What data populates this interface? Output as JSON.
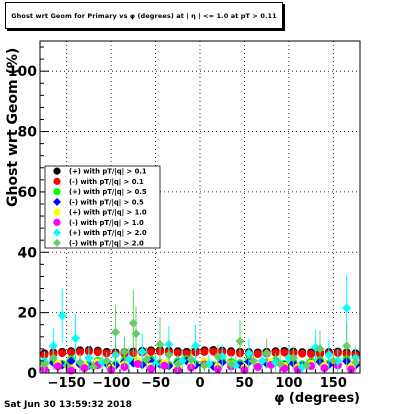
{
  "title": "Ghost wrt Geom for Primary vs φ (degrees) at | η | <= 1.0 at pT > 0.11",
  "timestamp": "Sat Jun 30 13:59:32 2018",
  "chart_data": {
    "type": "scatter",
    "title": "Ghost wrt Geom for Primary vs φ (degrees) at | η | <= 1.0 at pT > 0.11",
    "xlabel": "φ (degrees)",
    "ylabel": "Ghost wrt Geom (%)",
    "xlim": [
      -180,
      180
    ],
    "ylim": [
      0,
      110
    ],
    "xticks": [
      -150,
      -100,
      -50,
      0,
      50,
      100,
      150
    ],
    "yticks": [
      0,
      20,
      40,
      60,
      80,
      100
    ],
    "grid": true,
    "legend_position": "left",
    "series": [
      {
        "name": "(+) with pT/|q| > 0.1",
        "color": "#000000",
        "marker": "circle",
        "x": [
          -175,
          -165,
          -155,
          -145,
          -135,
          -125,
          -115,
          -105,
          -95,
          -85,
          -75,
          -65,
          -55,
          -45,
          -35,
          -25,
          -15,
          -5,
          5,
          15,
          25,
          35,
          45,
          55,
          65,
          75,
          85,
          95,
          105,
          115,
          125,
          135,
          145,
          155,
          165,
          175
        ],
        "y": [
          6.5,
          6.8,
          7.0,
          7.2,
          7.5,
          7.6,
          7.4,
          7.0,
          6.8,
          6.9,
          7.1,
          7.3,
          7.5,
          7.6,
          7.4,
          7.2,
          7.0,
          7.3,
          7.5,
          7.6,
          7.4,
          7.2,
          7.0,
          6.9,
          6.8,
          7.0,
          7.2,
          7.3,
          7.1,
          6.9,
          6.8,
          6.7,
          6.9,
          7.1,
          6.8,
          6.5
        ]
      },
      {
        "name": "(-) with pT/|q| > 0.1",
        "color": "#ff0000",
        "marker": "circle",
        "x": [
          -175,
          -165,
          -155,
          -145,
          -135,
          -125,
          -115,
          -105,
          -95,
          -85,
          -75,
          -65,
          -55,
          -45,
          -35,
          -25,
          -15,
          -5,
          5,
          15,
          25,
          35,
          45,
          55,
          65,
          75,
          85,
          95,
          105,
          115,
          125,
          135,
          145,
          155,
          165,
          175
        ],
        "y": [
          6.0,
          6.3,
          6.6,
          6.8,
          7.0,
          7.1,
          6.9,
          6.5,
          6.3,
          6.4,
          6.6,
          6.8,
          7.0,
          7.1,
          6.9,
          6.7,
          6.5,
          6.8,
          7.0,
          7.1,
          6.9,
          6.7,
          6.5,
          6.4,
          6.3,
          6.5,
          6.7,
          6.8,
          6.6,
          6.4,
          6.3,
          6.2,
          6.4,
          6.6,
          6.3,
          6.0
        ]
      },
      {
        "name": "(+) with pT/|q| > 0.5",
        "color": "#00ff00",
        "marker": "circle",
        "x": [
          -175,
          -165,
          -155,
          -145,
          -135,
          -125,
          -115,
          -105,
          -95,
          -85,
          -75,
          -65,
          -55,
          -45,
          -35,
          -25,
          -15,
          -5,
          5,
          15,
          25,
          35,
          45,
          55,
          65,
          75,
          85,
          95,
          105,
          115,
          125,
          135,
          145,
          155,
          165,
          175
        ],
        "y": [
          3.5,
          4.0,
          3.0,
          4.5,
          3.2,
          2.8,
          4.1,
          3.6,
          2.9,
          4.2,
          3.8,
          3.1,
          4.4,
          3.3,
          2.7,
          3.9,
          4.6,
          3.0,
          3.4,
          2.6,
          4.0,
          3.7,
          3.2,
          4.3,
          2.8,
          3.5,
          4.1,
          3.0,
          3.6,
          2.9,
          3.8,
          4.2,
          3.1,
          3.3,
          4.5,
          3.0
        ]
      },
      {
        "name": "(-) with pT/|q| > 0.5",
        "color": "#0000ff",
        "marker": "diamond",
        "x": [
          -175,
          -165,
          -155,
          -145,
          -135,
          -125,
          -115,
          -105,
          -95,
          -85,
          -75,
          -65,
          -55,
          -45,
          -35,
          -25,
          -15,
          -5,
          5,
          15,
          25,
          35,
          45,
          55,
          65,
          75,
          85,
          95,
          105,
          115,
          125,
          135,
          145,
          155,
          165,
          175
        ],
        "y": [
          3.0,
          3.4,
          2.6,
          3.9,
          2.8,
          2.4,
          3.6,
          3.1,
          2.5,
          3.7,
          3.3,
          2.7,
          3.8,
          2.9,
          2.3,
          3.4,
          4.0,
          2.6,
          3.0,
          2.2,
          3.5,
          3.2,
          2.8,
          3.7,
          2.4,
          3.1,
          3.6,
          2.6,
          3.2,
          2.5,
          3.3,
          3.7,
          2.7,
          2.9,
          3.9,
          2.6
        ]
      },
      {
        "name": "(+) with pT/|q| > 1.0",
        "color": "#ffff00",
        "marker": "circle",
        "x": [
          -175,
          -160,
          -145,
          -130,
          -115,
          -100,
          -85,
          -70,
          -55,
          -40,
          -25,
          -10,
          5,
          20,
          35,
          50,
          65,
          80,
          95,
          110,
          125,
          140,
          155,
          170
        ],
        "y": [
          2.0,
          3.0,
          1.5,
          2.5,
          3.5,
          1.8,
          2.8,
          4.0,
          2.2,
          3.2,
          1.6,
          2.6,
          3.8,
          2.1,
          3.0,
          1.7,
          2.9,
          3.6,
          2.3,
          1.9,
          3.1,
          2.4,
          3.4,
          2.0
        ]
      },
      {
        "name": "(-) with pT/|q| > 1.0",
        "color": "#ff00ff",
        "marker": "circle",
        "x": [
          -175,
          -160,
          -145,
          -130,
          -115,
          -100,
          -85,
          -70,
          -55,
          -40,
          -25,
          -10,
          5,
          20,
          35,
          50,
          65,
          80,
          95,
          110,
          125,
          140,
          155,
          170
        ],
        "y": [
          1.2,
          2.2,
          0.8,
          1.6,
          2.6,
          1.0,
          2.0,
          3.0,
          1.4,
          2.4,
          0.9,
          1.8,
          2.8,
          1.3,
          2.2,
          1.0,
          2.0,
          2.7,
          1.5,
          1.1,
          2.3,
          1.6,
          2.5,
          1.2
        ]
      },
      {
        "name": "(+) with pT/|q| > 2.0",
        "color": "#00ffff",
        "marker": "diamond",
        "x": [
          -175,
          -165,
          -155,
          -140,
          -125,
          -110,
          -95,
          -80,
          -65,
          -50,
          -35,
          -20,
          -5,
          10,
          25,
          40,
          55,
          70,
          85,
          100,
          115,
          130,
          145,
          155,
          165,
          175
        ],
        "y": [
          4.0,
          9.0,
          19.0,
          11.5,
          5.0,
          3.5,
          6.0,
          4.5,
          7.0,
          3.0,
          9.5,
          4.0,
          9.0,
          3.0,
          5.5,
          2.5,
          6.5,
          4.0,
          3.5,
          5.0,
          2.0,
          8.5,
          6.0,
          4.0,
          21.5,
          5.0
        ],
        "err": [
          3,
          6,
          9,
          8,
          4,
          3,
          5,
          4,
          6,
          3,
          6,
          4,
          7,
          3,
          4,
          3,
          5,
          4,
          3,
          4,
          2,
          6,
          5,
          4,
          11,
          4
        ]
      },
      {
        "name": "(-) with pT/|q| > 2.0",
        "color": "#66cc66",
        "marker": "diamond",
        "x": [
          -175,
          -165,
          -150,
          -135,
          -120,
          -105,
          -95,
          -85,
          -75,
          -72,
          -60,
          -45,
          -35,
          -25,
          -10,
          5,
          20,
          35,
          45,
          60,
          75,
          90,
          105,
          120,
          135,
          150,
          165,
          175
        ],
        "y": [
          3.0,
          5.0,
          2.5,
          3.5,
          2.0,
          4.0,
          13.5,
          7.0,
          16.5,
          13.0,
          4.5,
          9.5,
          6.0,
          3.0,
          4.5,
          2.5,
          5.5,
          3.0,
          10.5,
          4.0,
          6.5,
          3.0,
          5.0,
          2.5,
          8.0,
          4.0,
          9.0,
          3.5
        ],
        "err": [
          3,
          4,
          2,
          3,
          2,
          3,
          9,
          5,
          11,
          9,
          4,
          9,
          5,
          3,
          4,
          2,
          4,
          3,
          7,
          3,
          5,
          3,
          4,
          2,
          6,
          3,
          8,
          3
        ]
      }
    ]
  }
}
